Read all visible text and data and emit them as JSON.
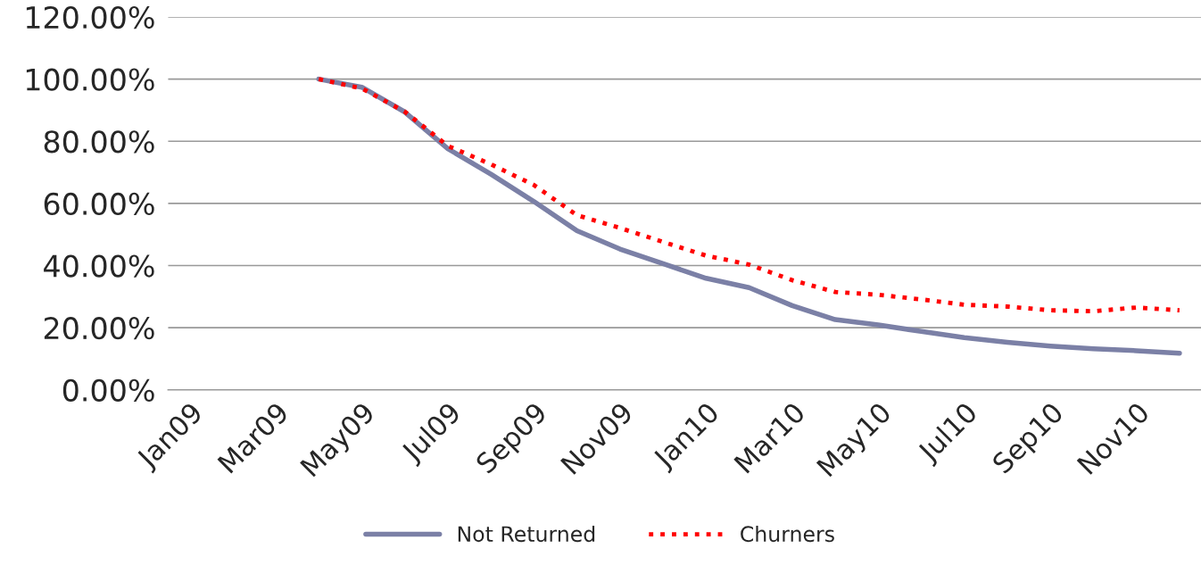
{
  "chart_data": {
    "type": "line",
    "categories": [
      "Jan09",
      null,
      "Mar09",
      null,
      "May09",
      null,
      "Jul09",
      null,
      "Sep09",
      null,
      "Nov09",
      null,
      "Jan10",
      null,
      "Mar10",
      null,
      "May10",
      null,
      "Jul10",
      null,
      "Sep10",
      null,
      "Nov10",
      null
    ],
    "series": [
      {
        "name": "Not Returned",
        "color": "#7b80a6",
        "line_style": "solid",
        "values": [
          null,
          null,
          null,
          100,
          97.4,
          89.4,
          77.6,
          69.4,
          60.6,
          51.2,
          45.3,
          40.6,
          35.9,
          32.9,
          27.1,
          22.6,
          20.9,
          18.8,
          16.8,
          15.3,
          14.1,
          13.2,
          12.6,
          11.8
        ]
      },
      {
        "name": "Churners",
        "color": "#ff0000",
        "line_style": "dotted",
        "values": [
          null,
          null,
          null,
          100,
          97.0,
          89.5,
          78.5,
          72.6,
          65.9,
          56.2,
          52.1,
          47.6,
          43.2,
          40.3,
          35.3,
          31.5,
          30.6,
          29.1,
          27.4,
          26.8,
          25.6,
          25.3,
          26.5,
          25.6
        ]
      }
    ],
    "ylim": [
      0,
      120
    ],
    "yticks": [
      {
        "value": 0,
        "label": "0.00%"
      },
      {
        "value": 20,
        "label": "20.00%"
      },
      {
        "value": 40,
        "label": "40.00%"
      },
      {
        "value": 60,
        "label": "60.00%"
      },
      {
        "value": 80,
        "label": "80.00%"
      },
      {
        "value": 100,
        "label": "100.00%"
      },
      {
        "value": 120,
        "label": "120.00%"
      }
    ],
    "grid": "y",
    "legend": "bottom",
    "marker": "none"
  }
}
